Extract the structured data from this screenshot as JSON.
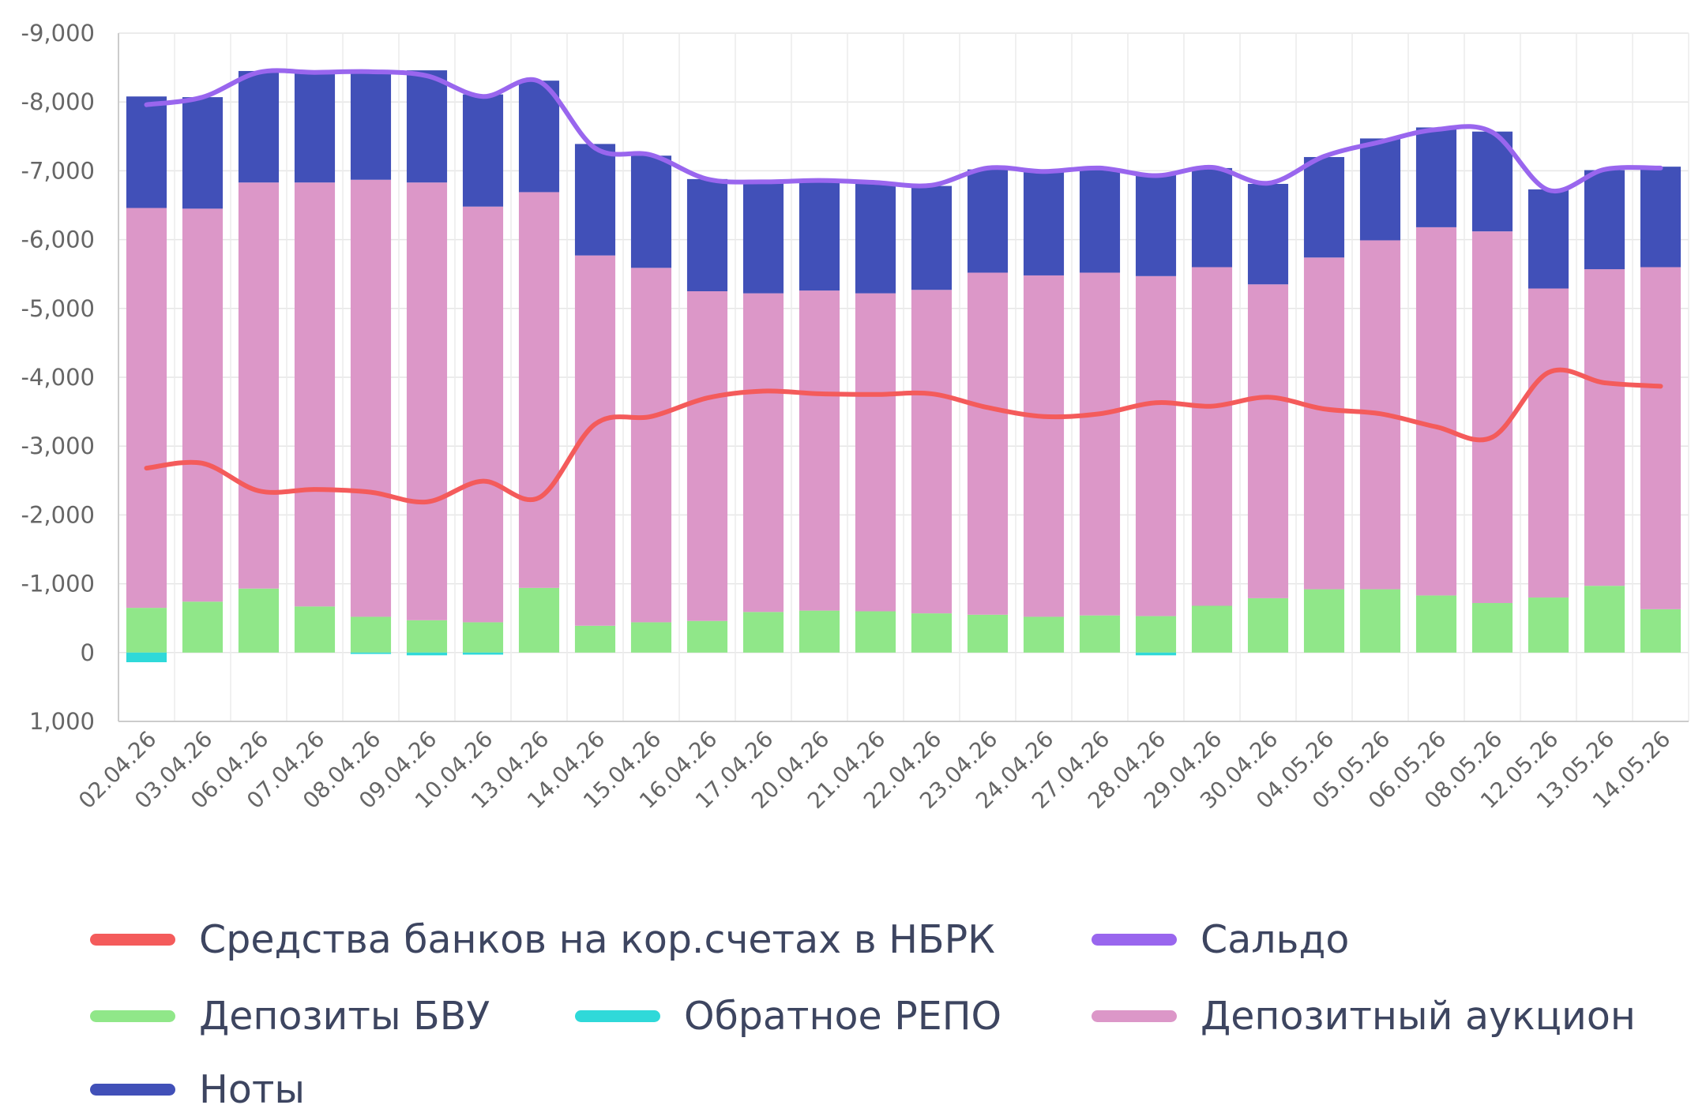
{
  "chart_data": {
    "type": "bar",
    "stacked": true,
    "categories": [
      "02.04.26",
      "03.04.26",
      "06.04.26",
      "07.04.26",
      "08.04.26",
      "09.04.26",
      "10.04.26",
      "13.04.26",
      "14.04.26",
      "15.04.26",
      "16.04.26",
      "17.04.26",
      "20.04.26",
      "21.04.26",
      "22.04.26",
      "23.04.26",
      "24.04.26",
      "27.04.26",
      "28.04.26",
      "29.04.26",
      "30.04.26",
      "04.05.26",
      "05.05.26",
      "06.05.26",
      "08.05.26",
      "12.05.26",
      "13.05.26",
      "14.05.26"
    ],
    "y_ticks": [
      "-9,000",
      "-8,000",
      "-7,000",
      "-6,000",
      "-5,000",
      "-4,000",
      "-3,000",
      "-2,000",
      "-1,000",
      "0",
      "1,000"
    ],
    "ylim": [
      1000,
      -9000
    ],
    "y_inverted": true,
    "grid": true,
    "legend_position": "bottom",
    "series": [
      {
        "name": "Средства банков на кор.счетах в НБРК",
        "kind": "line",
        "color": "#f45b5b",
        "values": [
          -2680,
          -2750,
          -2350,
          -2370,
          -2330,
          -2190,
          -2490,
          -2250,
          -3320,
          -3430,
          -3700,
          -3800,
          -3760,
          -3750,
          -3760,
          -3560,
          -3430,
          -3470,
          -3630,
          -3580,
          -3710,
          -3540,
          -3470,
          -3280,
          -3130,
          -4070,
          -3920,
          -3870
        ]
      },
      {
        "name": "Сальдо",
        "kind": "line",
        "color": "#9966ee",
        "values": [
          -7960,
          -8070,
          -8430,
          -8430,
          -8440,
          -8380,
          -8080,
          -8300,
          -7330,
          -7230,
          -6880,
          -6840,
          -6860,
          -6830,
          -6790,
          -7040,
          -6990,
          -7040,
          -6930,
          -7050,
          -6820,
          -7210,
          -7420,
          -7600,
          -7560,
          -6720,
          -7020,
          -7040
        ]
      },
      {
        "name": "Депозиты БВУ",
        "kind": "bar",
        "color": "#90e789",
        "values": [
          -650,
          -740,
          -930,
          -670,
          -520,
          -470,
          -440,
          -940,
          -390,
          -440,
          -460,
          -590,
          -610,
          -600,
          -570,
          -550,
          -520,
          -540,
          -530,
          -680,
          -790,
          -920,
          -920,
          -830,
          -720,
          -800,
          -970,
          -630
        ]
      },
      {
        "name": "Обратное РЕПО",
        "kind": "bar",
        "color": "#2fd9d9",
        "values": [
          140,
          0,
          0,
          0,
          20,
          40,
          30,
          0,
          0,
          0,
          0,
          0,
          0,
          0,
          0,
          0,
          0,
          0,
          40,
          0,
          0,
          0,
          0,
          0,
          0,
          0,
          0,
          0
        ]
      },
      {
        "name": "Депозитный аукцион",
        "kind": "bar",
        "color": "#dc97c8",
        "values": [
          -5810,
          -5710,
          -5900,
          -6160,
          -6350,
          -6360,
          -6040,
          -5750,
          -5380,
          -5150,
          -4790,
          -4630,
          -4650,
          -4620,
          -4700,
          -4970,
          -4960,
          -4980,
          -4940,
          -4920,
          -4560,
          -4820,
          -5070,
          -5350,
          -5400,
          -4490,
          -4600,
          -4970
        ]
      },
      {
        "name": "Ноты",
        "kind": "bar",
        "color": "#4150b8",
        "values": [
          -1620,
          -1620,
          -1620,
          -1620,
          -1590,
          -1630,
          -1630,
          -1620,
          -1620,
          -1630,
          -1630,
          -1620,
          -1610,
          -1610,
          -1510,
          -1500,
          -1500,
          -1510,
          -1470,
          -1440,
          -1460,
          -1460,
          -1480,
          -1450,
          -1450,
          -1440,
          -1440,
          -1460
        ]
      }
    ]
  }
}
